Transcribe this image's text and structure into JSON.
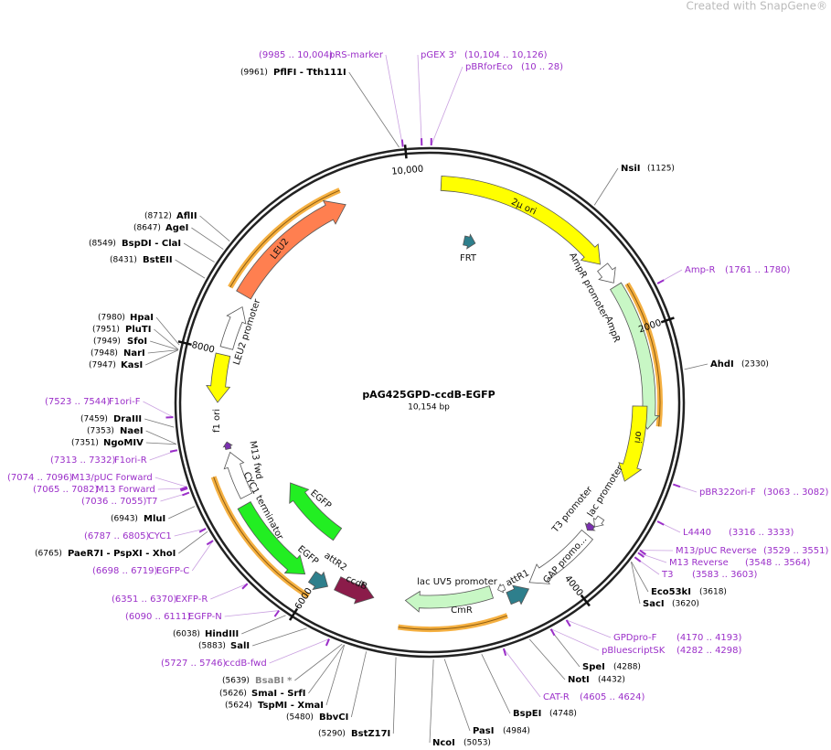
{
  "watermark": "Created with SnapGene®",
  "map": {
    "name": "pAG425GPD-ccdB-EGFP",
    "length": "10,154 bp"
  },
  "ticks": [
    2000,
    4000,
    6000,
    8000,
    {
      "value": 10000,
      "label": "10,000"
    }
  ],
  "features": [
    "2µ ori",
    "AmpR promoter",
    "AmpR",
    "ori",
    "lac promoter",
    "T3 promoter",
    "GAP promo...",
    "attR1",
    "lac UV5 promoter",
    "CmR",
    "ccdB",
    "attR2",
    "EGFP",
    "EGFP",
    "CYC1 terminator",
    "M13 fwd",
    "f1 ori",
    "LEU2 promoter",
    "LEU2",
    "FRT"
  ],
  "sites": [
    {
      "name": "NsiI",
      "location": "(1125)"
    },
    {
      "name": "AhdI",
      "location": "(2330)"
    },
    {
      "name": "Eco53kI",
      "location": "(3618)"
    },
    {
      "name": "SacI",
      "location": "(3620)"
    },
    {
      "name": "SpeI",
      "location": "(4288)"
    },
    {
      "name": "NotI",
      "location": "(4432)"
    },
    {
      "name": "BspEI",
      "location": "(4748)"
    },
    {
      "name": "PasI",
      "location": "(4984)"
    },
    {
      "name": "NcoI",
      "location": "(5053)"
    },
    {
      "name": "BstZ17I",
      "location": "(5290)"
    },
    {
      "name": "BbvCI",
      "location": "(5480)"
    },
    {
      "name": "TspMI - XmaI",
      "location": "(5624)"
    },
    {
      "name": "SmaI - SrfI",
      "location": "(5626)"
    },
    {
      "name": "BsaBI *",
      "location": "(5639)"
    },
    {
      "name": "SalI",
      "location": "(5883)"
    },
    {
      "name": "HindIII",
      "location": "(6038)"
    },
    {
      "name": "PaeR7I - PspXI - XhoI",
      "location": "(6765)"
    },
    {
      "name": "MluI",
      "location": "(6943)"
    },
    {
      "name": "NgoMIV",
      "location": "(7351)"
    },
    {
      "name": "NaeI",
      "location": "(7353)"
    },
    {
      "name": "DraIII",
      "location": "(7459)"
    },
    {
      "name": "KasI",
      "location": "(7947)"
    },
    {
      "name": "NarI",
      "location": "(7948)"
    },
    {
      "name": "SfoI",
      "location": "(7949)"
    },
    {
      "name": "PluTI",
      "location": "(7951)"
    },
    {
      "name": "HpaI",
      "location": "(7980)"
    },
    {
      "name": "BstEII",
      "location": "(8431)"
    },
    {
      "name": "BspDI - ClaI",
      "location": "(8549)"
    },
    {
      "name": "AgeI",
      "location": "(8647)"
    },
    {
      "name": "AflII",
      "location": "(8712)"
    },
    {
      "name": "PflFI - Tth111I",
      "location": "(9961)"
    }
  ],
  "primers": [
    {
      "name": "pRS-marker",
      "range": "(9985 .. 10,004)"
    },
    {
      "name": "pGEX 3'",
      "range": "(10,104 .. 10,126)"
    },
    {
      "name": "pBRforEco",
      "range": "(10 .. 28)"
    },
    {
      "name": "Amp-R",
      "range": "(1761 .. 1780)"
    },
    {
      "name": "pBR322ori-F",
      "range": "(3063 .. 3082)"
    },
    {
      "name": "L4440",
      "range": "(3316 .. 3333)"
    },
    {
      "name": "M13/pUC Reverse",
      "range": "(3529 .. 3551)"
    },
    {
      "name": "M13 Reverse",
      "range": "(3548 .. 3564)"
    },
    {
      "name": "T3",
      "range": "(3583 .. 3603)"
    },
    {
      "name": "GPDpro-F",
      "range": "(4170 .. 4193)"
    },
    {
      "name": "pBluescriptSK",
      "range": "(4282 .. 4298)"
    },
    {
      "name": "CAT-R",
      "range": "(4605 .. 4624)"
    },
    {
      "name": "ccdB-fwd",
      "range": "(5727 .. 5746)"
    },
    {
      "name": "EGFP-N",
      "range": "(6090 .. 6111)"
    },
    {
      "name": "EXFP-R",
      "range": "(6351 .. 6370)"
    },
    {
      "name": "EGFP-C",
      "range": "(6698 .. 6719)"
    },
    {
      "name": "CYC1",
      "range": "(6787 .. 6805)"
    },
    {
      "name": "T7",
      "range": "(7036 .. 7055)"
    },
    {
      "name": "M13 Forward",
      "range": "(7065 .. 7082)"
    },
    {
      "name": "M13/pUC Forward",
      "range": "(7074 .. 7096)"
    },
    {
      "name": "F1ori-R",
      "range": "(7313 .. 7332)"
    },
    {
      "name": "F1ori-F",
      "range": "(7523 .. 7544)"
    }
  ]
}
